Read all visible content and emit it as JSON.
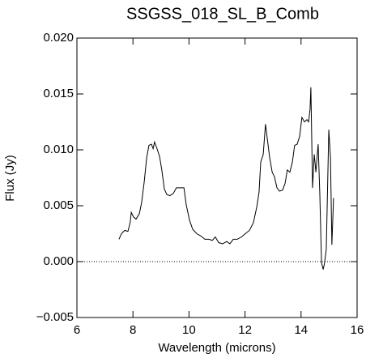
{
  "chart_data": {
    "type": "line",
    "title": "SSGSS_018_SL_B_Comb",
    "x_label": "Wavelength (microns)",
    "y_label": "Flux (Jy)",
    "xlim": [
      6,
      16
    ],
    "xticks": [
      6,
      8,
      10,
      12,
      14,
      16
    ],
    "ylim": [
      -0.005,
      0.02
    ],
    "yticks": [
      {
        "value": -0.005,
        "label": "−0.005"
      },
      {
        "value": 0,
        "label": "0.000"
      },
      {
        "value": 0.005,
        "label": "0.005"
      },
      {
        "value": 0.01,
        "label": "0.010"
      },
      {
        "value": 0.015,
        "label": "0.015"
      },
      {
        "value": 0.02,
        "label": "0.020"
      }
    ],
    "zero_line": true,
    "series": [
      {
        "color": "#000000",
        "x": [
          7.5,
          7.59,
          7.71,
          7.82,
          7.9,
          7.94,
          8.02,
          8.11,
          8.23,
          8.31,
          8.4,
          8.49,
          8.57,
          8.66,
          8.72,
          8.77,
          8.86,
          8.95,
          9.03,
          9.12,
          9.21,
          9.32,
          9.44,
          9.55,
          9.7,
          9.82,
          9.9,
          10.02,
          10.13,
          10.28,
          10.42,
          10.57,
          10.71,
          10.83,
          10.94,
          11.06,
          11.2,
          11.35,
          11.46,
          11.58,
          11.72,
          11.87,
          12.01,
          12.16,
          12.3,
          12.42,
          12.5,
          12.56,
          12.65,
          12.73,
          12.79,
          12.88,
          12.97,
          13.05,
          13.14,
          13.23,
          13.34,
          13.43,
          13.51,
          13.6,
          13.69,
          13.77,
          13.86,
          13.95,
          14.03,
          14.12,
          14.21,
          14.27,
          14.32,
          14.35,
          14.41,
          14.47,
          14.53,
          14.58,
          14.61,
          14.67,
          14.73,
          14.79,
          14.84,
          14.9,
          14.99,
          15.05,
          15.1,
          15.16
        ],
        "values": [
          0.002,
          0.0025,
          0.0028,
          0.0027,
          0.0035,
          0.0044,
          0.004,
          0.0038,
          0.0043,
          0.0053,
          0.0071,
          0.0093,
          0.0104,
          0.0105,
          0.0101,
          0.0107,
          0.0101,
          0.0094,
          0.0082,
          0.0065,
          0.006,
          0.0059,
          0.0061,
          0.0066,
          0.0066,
          0.0066,
          0.0051,
          0.0037,
          0.0029,
          0.0025,
          0.0023,
          0.002,
          0.002,
          0.0019,
          0.0022,
          0.0017,
          0.0016,
          0.0018,
          0.0016,
          0.002,
          0.002,
          0.0022,
          0.0025,
          0.0028,
          0.0035,
          0.0049,
          0.0062,
          0.0089,
          0.0096,
          0.0123,
          0.0111,
          0.0093,
          0.008,
          0.0076,
          0.0066,
          0.0063,
          0.0064,
          0.007,
          0.0082,
          0.008,
          0.0089,
          0.0104,
          0.0105,
          0.0112,
          0.0129,
          0.0125,
          0.0127,
          0.0125,
          0.0136,
          0.0156,
          0.0066,
          0.0096,
          0.008,
          0.0096,
          0.0105,
          0.006,
          -0.0001,
          -0.0007,
          -0.0001,
          0.0011,
          0.0118,
          0.0093,
          0.0015,
          0.0057
        ]
      }
    ]
  }
}
